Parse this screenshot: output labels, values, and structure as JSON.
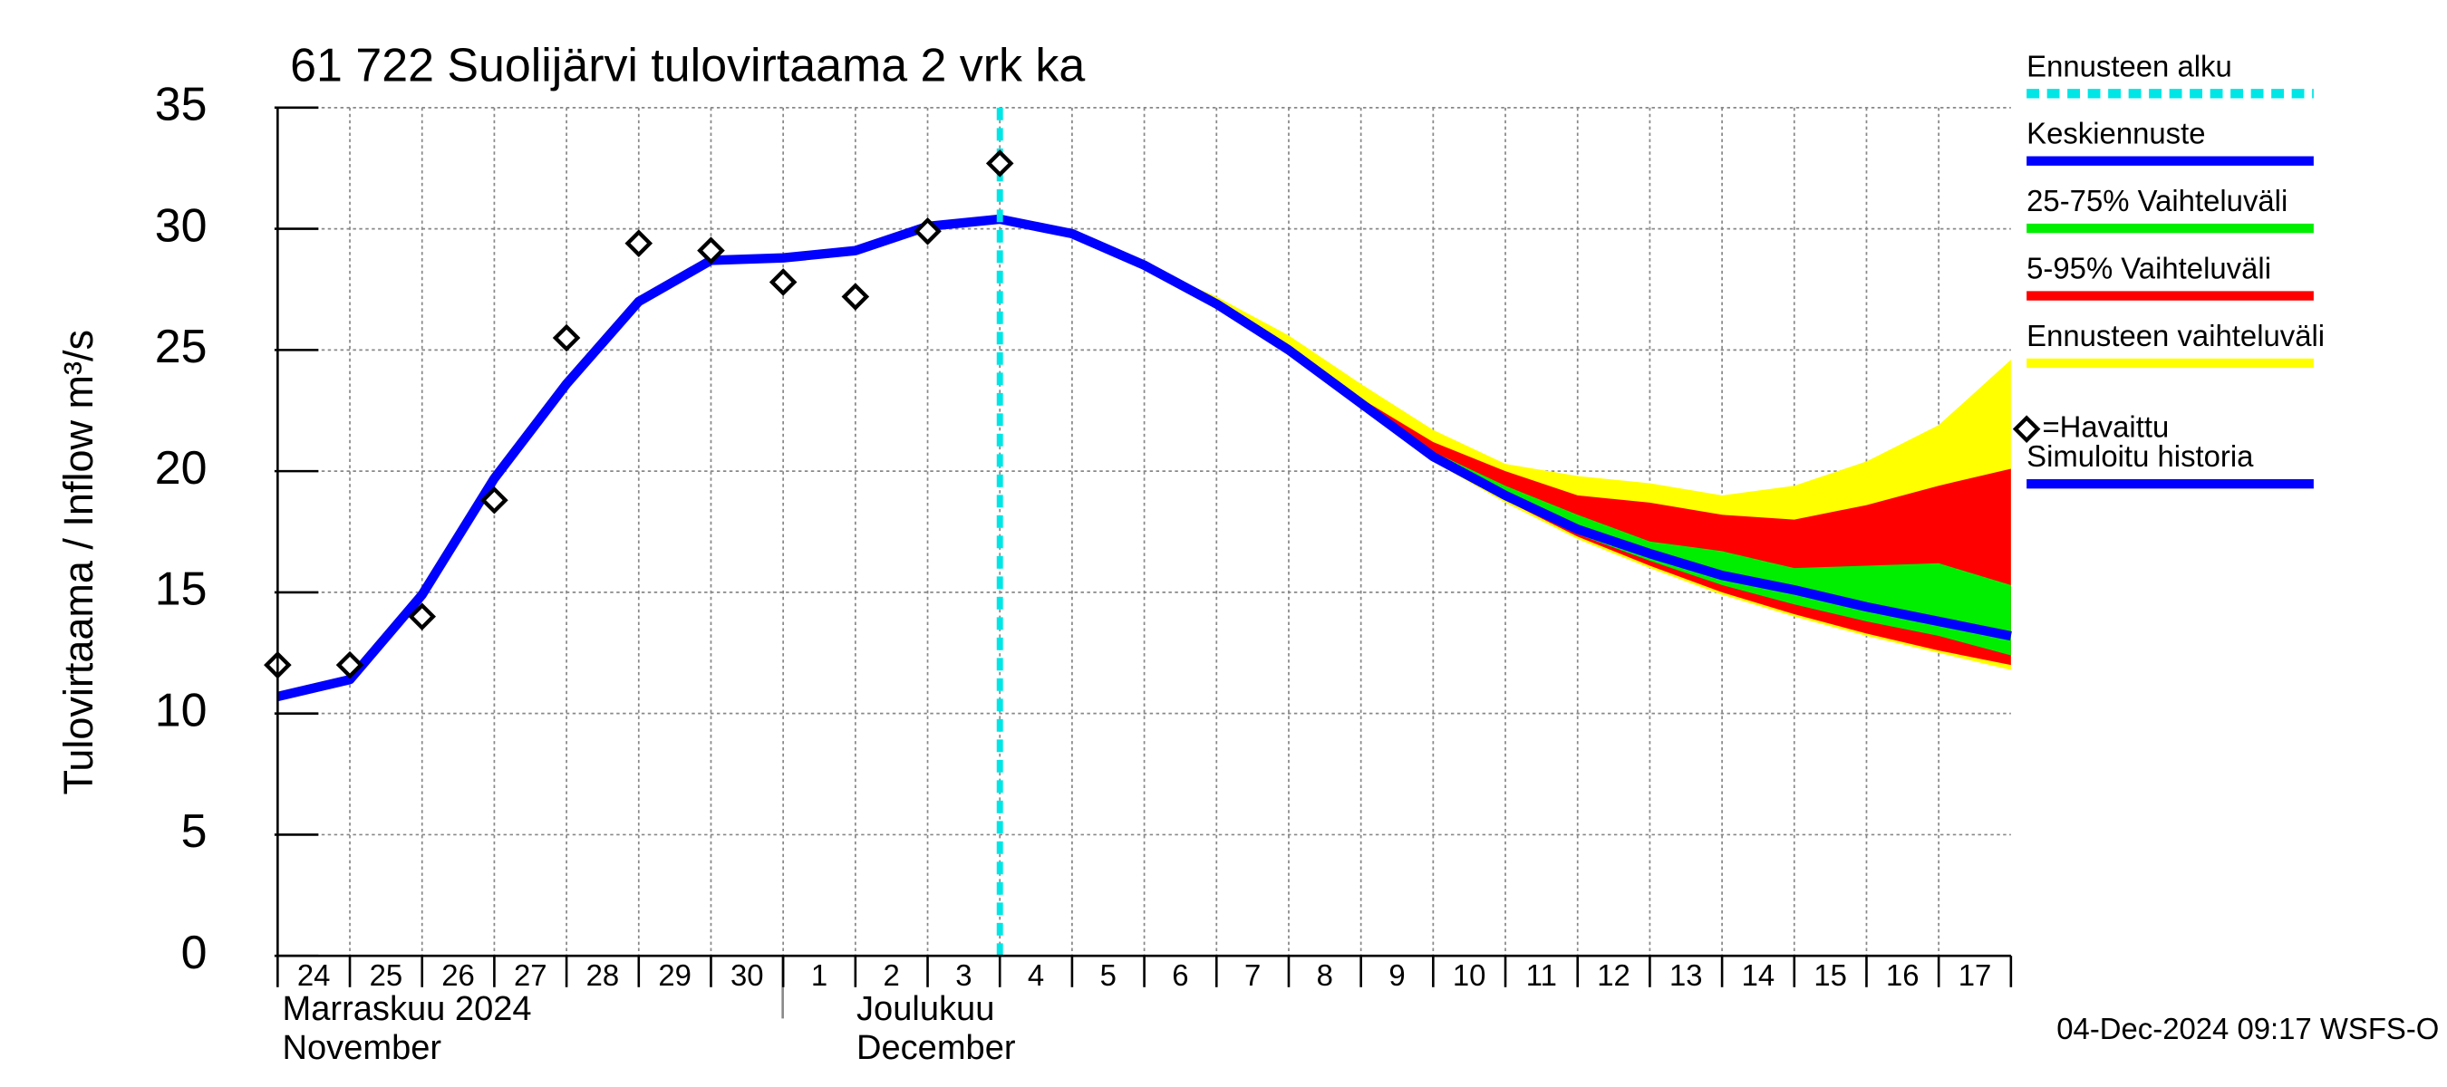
{
  "chart_data": {
    "type": "line",
    "title": "61 722 Suolijärvi tulovirtaama 2 vrk ka",
    "ylabel": "Tulovirtaama / Inflow    m³/s",
    "categories": [
      "24",
      "25",
      "26",
      "27",
      "28",
      "29",
      "30",
      "1",
      "2",
      "3",
      "4",
      "5",
      "6",
      "7",
      "8",
      "9",
      "10",
      "11",
      "12",
      "13",
      "14",
      "15",
      "16",
      "17",
      null
    ],
    "month_labels": [
      "Marraskuu 2024",
      "November",
      "Joulukuu",
      "December"
    ],
    "footer": "04-Dec-2024 09:17 WSFS-O",
    "ylim": [
      0,
      35
    ],
    "yticks": [
      0,
      5,
      10,
      15,
      20,
      25,
      30,
      35
    ],
    "grid": true,
    "forecast_start": {
      "name": "Ennusteen alku",
      "color": "#00e5e5",
      "category": "4"
    },
    "series": [
      {
        "name": "Ennusteen vaihteluväli",
        "kind": "band",
        "color": "#ffff00",
        "values": [
          null,
          null,
          null,
          null,
          null,
          null,
          null,
          null,
          null,
          null,
          30.4,
          29.8,
          28.5,
          27.2,
          25.6,
          23.6,
          21.7,
          20.3,
          19.8,
          19.5,
          19.0,
          19.4,
          20.4,
          21.9,
          24.6
        ],
        "lower": [
          null,
          null,
          null,
          null,
          null,
          null,
          null,
          null,
          null,
          null,
          30.4,
          29.8,
          28.5,
          26.8,
          24.9,
          22.7,
          20.4,
          18.7,
          17.2,
          16.0,
          14.9,
          14.0,
          13.2,
          12.5,
          11.8
        ]
      },
      {
        "name": "5-95% Vaihteluväli",
        "kind": "band",
        "color": "#ff0000",
        "values": [
          null,
          null,
          null,
          null,
          null,
          null,
          null,
          null,
          null,
          null,
          30.4,
          29.8,
          28.5,
          26.9,
          25.1,
          23.0,
          21.2,
          20.0,
          19.0,
          18.7,
          18.2,
          18.0,
          18.6,
          19.4,
          20.1
        ],
        "lower": [
          null,
          null,
          null,
          null,
          null,
          null,
          null,
          null,
          null,
          null,
          30.4,
          29.8,
          28.5,
          26.8,
          24.9,
          22.7,
          20.4,
          18.8,
          17.3,
          16.1,
          15.0,
          14.1,
          13.3,
          12.6,
          12.0
        ]
      },
      {
        "name": "25-75% Vaihteluväli",
        "kind": "band",
        "color": "#00ee00",
        "values": [
          null,
          null,
          null,
          null,
          null,
          null,
          null,
          null,
          null,
          null,
          30.4,
          29.8,
          28.5,
          26.9,
          25.0,
          22.9,
          20.8,
          19.4,
          18.2,
          17.1,
          16.7,
          16.0,
          16.1,
          16.2,
          15.3
        ],
        "lower": [
          null,
          null,
          null,
          null,
          null,
          null,
          null,
          null,
          null,
          null,
          30.4,
          29.8,
          28.5,
          26.9,
          25.0,
          22.8,
          20.5,
          18.9,
          17.4,
          16.3,
          15.3,
          14.5,
          13.8,
          13.2,
          12.4
        ]
      },
      {
        "name": "Keskiennuste",
        "kind": "line",
        "color": "#0000ff",
        "values": [
          null,
          null,
          null,
          null,
          null,
          null,
          null,
          null,
          null,
          null,
          30.4,
          29.8,
          28.5,
          26.9,
          25.0,
          22.8,
          20.6,
          19.0,
          17.6,
          16.6,
          15.7,
          15.1,
          14.4,
          13.8,
          13.2
        ]
      },
      {
        "name": "Simuloitu historia",
        "kind": "line",
        "color": "#0000ff",
        "values": [
          10.7,
          11.4,
          14.9,
          19.7,
          23.6,
          27.0,
          28.7,
          28.8,
          29.1,
          30.1,
          30.4,
          null,
          null,
          null,
          null,
          null,
          null,
          null,
          null,
          null,
          null,
          null,
          null,
          null,
          null
        ]
      },
      {
        "name": "=Havaittu",
        "kind": "marker",
        "color": "#000000",
        "values": [
          12.0,
          12.0,
          14.0,
          18.8,
          25.5,
          29.4,
          29.1,
          27.8,
          27.2,
          29.9,
          32.7,
          null,
          null,
          null,
          null,
          null,
          null,
          null,
          null,
          null,
          null,
          null,
          null,
          null,
          null
        ]
      }
    ]
  }
}
